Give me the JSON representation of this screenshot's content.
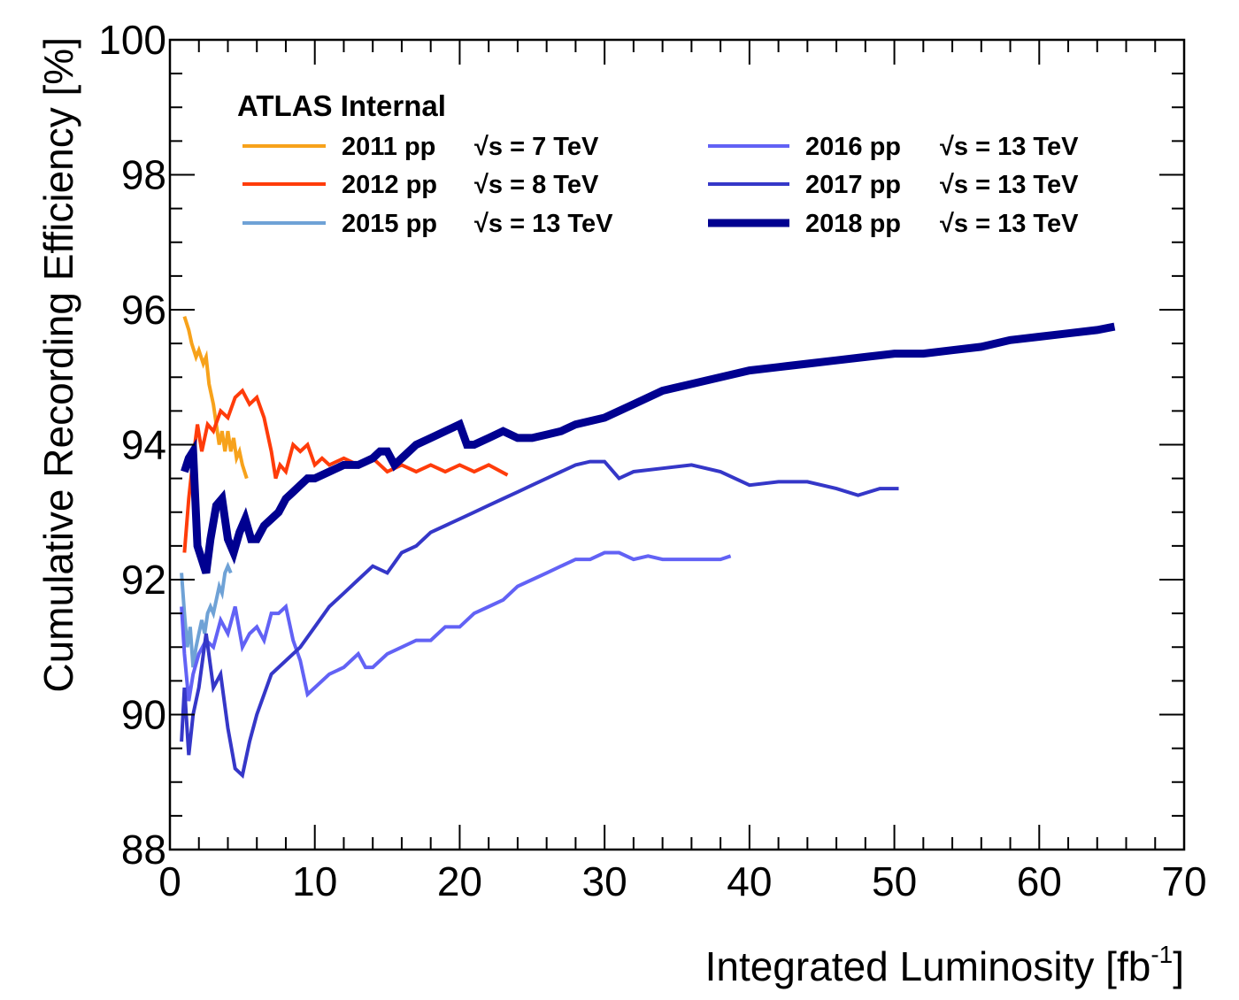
{
  "chart_data": {
    "type": "line",
    "title": "",
    "annotation": "ATLAS Internal",
    "xlabel": "Integrated Luminosity [fb",
    "xlabel_sup": "-1",
    "xlabel_close": "]",
    "ylabel": "Cumulative Recording Efficiency [%]",
    "xlim": [
      0,
      70
    ],
    "ylim": [
      88,
      100
    ],
    "x_ticks": [
      "0",
      "10",
      "20",
      "30",
      "40",
      "50",
      "60",
      "70"
    ],
    "y_ticks": [
      "88",
      "90",
      "92",
      "94",
      "96",
      "98",
      "100"
    ],
    "grid": false,
    "legend_position": "top",
    "series": [
      {
        "name": "2011 pp",
        "energy": "√s = 7 TeV",
        "color": "#f7a21b",
        "width": 4,
        "x": [
          1.0,
          1.3,
          1.5,
          1.8,
          2.0,
          2.3,
          2.5,
          2.7,
          3.0,
          3.2,
          3.4,
          3.6,
          3.8,
          4.0,
          4.2,
          4.4,
          4.6,
          4.8,
          5.0,
          5.3
        ],
        "y": [
          95.9,
          95.7,
          95.5,
          95.3,
          95.4,
          95.2,
          95.3,
          94.9,
          94.6,
          94.3,
          94.0,
          94.2,
          93.9,
          94.2,
          93.9,
          94.1,
          93.8,
          93.9,
          93.7,
          93.5
        ]
      },
      {
        "name": "2012 pp",
        "energy": "√s = 8 TeV",
        "color": "#ff3c0a",
        "width": 4,
        "x": [
          1.0,
          1.3,
          1.6,
          1.9,
          2.2,
          2.6,
          3.0,
          3.5,
          4.0,
          4.5,
          5.0,
          5.5,
          6.0,
          6.5,
          7.0,
          7.3,
          7.6,
          8.0,
          8.5,
          9.0,
          9.5,
          10.0,
          10.5,
          11.0,
          12.0,
          13.0,
          14.0,
          15.0,
          16.0,
          17.0,
          18.0,
          19.0,
          20.0,
          21.0,
          22.0,
          23.3
        ],
        "y": [
          92.4,
          93.2,
          93.8,
          94.3,
          93.9,
          94.3,
          94.2,
          94.5,
          94.4,
          94.7,
          94.8,
          94.6,
          94.7,
          94.4,
          93.9,
          93.5,
          93.7,
          93.6,
          94.0,
          93.9,
          94.0,
          93.7,
          93.8,
          93.7,
          93.8,
          93.7,
          93.8,
          93.6,
          93.7,
          93.6,
          93.7,
          93.6,
          93.7,
          93.6,
          93.7,
          93.55
        ]
      },
      {
        "name": "2015 pp",
        "energy": "√s = 13 TeV",
        "color": "#6fa2d6",
        "width": 4,
        "x": [
          0.8,
          1.0,
          1.2,
          1.4,
          1.6,
          1.8,
          2.0,
          2.2,
          2.4,
          2.6,
          2.8,
          3.0,
          3.2,
          3.4,
          3.6,
          3.8,
          4.0,
          4.2
        ],
        "y": [
          92.1,
          91.5,
          91.0,
          91.3,
          90.7,
          91.0,
          91.2,
          91.4,
          91.2,
          91.5,
          91.6,
          91.5,
          91.7,
          91.9,
          91.8,
          92.1,
          92.2,
          92.1
        ]
      },
      {
        "name": "2016 pp",
        "energy": "√s = 13 TeV",
        "color": "#6262f5",
        "width": 4,
        "x": [
          0.8,
          1.0,
          1.3,
          1.6,
          2.0,
          2.5,
          3.0,
          3.5,
          4.0,
          4.5,
          5.0,
          5.5,
          6.0,
          6.5,
          7.0,
          7.5,
          8.0,
          8.5,
          9.0,
          9.5,
          10.0,
          11.0,
          12.0,
          13.0,
          13.5,
          14.0,
          15.0,
          16.0,
          17.0,
          18.0,
          19.0,
          20.0,
          21.0,
          22.0,
          23.0,
          24.0,
          25.0,
          26.0,
          27.0,
          28.0,
          29.0,
          30.0,
          31.0,
          32.0,
          33.0,
          34.0,
          35.0,
          36.0,
          37.0,
          38.0,
          38.7
        ],
        "y": [
          91.6,
          90.9,
          90.2,
          90.6,
          90.9,
          91.1,
          91.0,
          91.4,
          91.2,
          91.6,
          91.0,
          91.2,
          91.3,
          91.1,
          91.5,
          91.5,
          91.6,
          91.1,
          90.8,
          90.3,
          90.4,
          90.6,
          90.7,
          90.9,
          90.7,
          90.7,
          90.9,
          91.0,
          91.1,
          91.1,
          91.3,
          91.3,
          91.5,
          91.6,
          91.7,
          91.9,
          92.0,
          92.1,
          92.2,
          92.3,
          92.3,
          92.4,
          92.4,
          92.3,
          92.35,
          92.3,
          92.3,
          92.3,
          92.3,
          92.3,
          92.35
        ]
      },
      {
        "name": "2017 pp",
        "energy": "√s = 13 TeV",
        "color": "#3537c8",
        "width": 4,
        "x": [
          0.8,
          1.0,
          1.3,
          1.6,
          2.0,
          2.5,
          3.0,
          3.5,
          4.0,
          4.5,
          5.0,
          5.5,
          6.0,
          7.0,
          8.0,
          9.0,
          10.0,
          11.0,
          12.0,
          13.0,
          14.0,
          15.0,
          16.0,
          17.0,
          18.0,
          19.0,
          20.0,
          21.0,
          22.0,
          23.0,
          24.0,
          25.0,
          26.0,
          27.0,
          28.0,
          29.0,
          30.0,
          31.0,
          32.0,
          34.0,
          36.0,
          38.0,
          40.0,
          42.0,
          44.0,
          46.0,
          47.5,
          49.0,
          50.3
        ],
        "y": [
          89.6,
          90.4,
          89.4,
          90.0,
          90.4,
          91.2,
          90.4,
          90.6,
          89.8,
          89.2,
          89.1,
          89.6,
          90.0,
          90.6,
          90.8,
          91.0,
          91.3,
          91.6,
          91.8,
          92.0,
          92.2,
          92.1,
          92.4,
          92.5,
          92.7,
          92.8,
          92.9,
          93.0,
          93.1,
          93.2,
          93.3,
          93.4,
          93.5,
          93.6,
          93.7,
          93.75,
          93.75,
          93.5,
          93.6,
          93.65,
          93.7,
          93.6,
          93.4,
          93.45,
          93.45,
          93.35,
          93.25,
          93.35,
          93.35
        ]
      },
      {
        "name": "2018 pp",
        "energy": "√s = 13 TeV",
        "color": "#000090",
        "width": 9,
        "x": [
          1.0,
          1.3,
          1.6,
          1.9,
          2.2,
          2.5,
          2.8,
          3.2,
          3.6,
          4.0,
          4.4,
          4.8,
          5.2,
          5.6,
          6.0,
          6.5,
          7.0,
          7.5,
          8.0,
          8.5,
          9.0,
          9.5,
          10.0,
          11.0,
          12.0,
          13.0,
          14.0,
          14.5,
          15.0,
          15.5,
          16.0,
          17.0,
          18.0,
          19.0,
          20.0,
          20.5,
          21.0,
          22.0,
          23.0,
          24.0,
          25.0,
          26.0,
          27.0,
          28.0,
          30.0,
          32.0,
          34.0,
          36.0,
          38.0,
          40.0,
          42.0,
          44.0,
          46.0,
          48.0,
          50.0,
          52.0,
          54.0,
          56.0,
          58.0,
          60.0,
          62.0,
          64.0,
          65.2
        ],
        "y": [
          93.6,
          93.8,
          93.9,
          92.5,
          92.3,
          92.1,
          92.6,
          93.1,
          93.2,
          92.6,
          92.4,
          92.7,
          92.9,
          92.6,
          92.6,
          92.8,
          92.9,
          93.0,
          93.2,
          93.3,
          93.4,
          93.5,
          93.5,
          93.6,
          93.7,
          93.7,
          93.8,
          93.9,
          93.9,
          93.7,
          93.8,
          94.0,
          94.1,
          94.2,
          94.3,
          94.0,
          94.0,
          94.1,
          94.2,
          94.1,
          94.1,
          94.15,
          94.2,
          94.3,
          94.4,
          94.6,
          94.8,
          94.9,
          95.0,
          95.1,
          95.15,
          95.2,
          95.25,
          95.3,
          95.35,
          95.35,
          95.4,
          95.45,
          95.55,
          95.6,
          95.65,
          95.7,
          95.75
        ]
      }
    ]
  }
}
